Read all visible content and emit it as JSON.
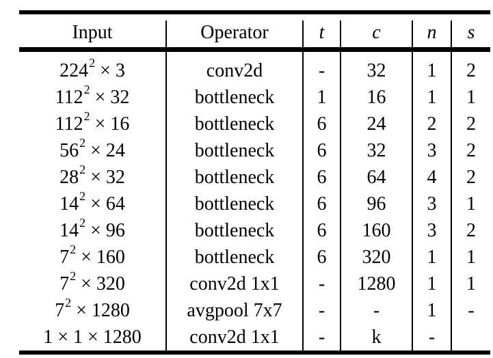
{
  "headers": [
    "Input",
    "Operator",
    "t",
    "c",
    "n",
    "s"
  ],
  "rows": [
    {
      "input_base": "224",
      "input_exp": "2",
      "input_rest": " × 3",
      "operator": "conv2d",
      "t": "-",
      "c": "32",
      "n": "1",
      "s": "2"
    },
    {
      "input_base": "112",
      "input_exp": "2",
      "input_rest": " × 32",
      "operator": "bottleneck",
      "t": "1",
      "c": "16",
      "n": "1",
      "s": "1"
    },
    {
      "input_base": "112",
      "input_exp": "2",
      "input_rest": " × 16",
      "operator": "bottleneck",
      "t": "6",
      "c": "24",
      "n": "2",
      "s": "2"
    },
    {
      "input_base": "56",
      "input_exp": "2",
      "input_rest": " × 24",
      "operator": "bottleneck",
      "t": "6",
      "c": "32",
      "n": "3",
      "s": "2"
    },
    {
      "input_base": "28",
      "input_exp": "2",
      "input_rest": " × 32",
      "operator": "bottleneck",
      "t": "6",
      "c": "64",
      "n": "4",
      "s": "2"
    },
    {
      "input_base": "14",
      "input_exp": "2",
      "input_rest": " × 64",
      "operator": "bottleneck",
      "t": "6",
      "c": "96",
      "n": "3",
      "s": "1"
    },
    {
      "input_base": "14",
      "input_exp": "2",
      "input_rest": " × 96",
      "operator": "bottleneck",
      "t": "6",
      "c": "160",
      "n": "3",
      "s": "2"
    },
    {
      "input_base": "7",
      "input_exp": "2",
      "input_rest": " × 160",
      "operator": "bottleneck",
      "t": "6",
      "c": "320",
      "n": "1",
      "s": "1"
    },
    {
      "input_base": "7",
      "input_exp": "2",
      "input_rest": " × 320",
      "operator": "conv2d 1x1",
      "t": "-",
      "c": "1280",
      "n": "1",
      "s": "1"
    },
    {
      "input_base": "7",
      "input_exp": "2",
      "input_rest": " × 1280",
      "operator": "avgpool 7x7",
      "t": "-",
      "c": "-",
      "n": "1",
      "s": "-"
    },
    {
      "input_base": "1 × 1 × 1280",
      "input_exp": "",
      "input_rest": "",
      "operator": "conv2d 1x1",
      "t": "-",
      "c": "k",
      "n": "-",
      "s": ""
    }
  ]
}
